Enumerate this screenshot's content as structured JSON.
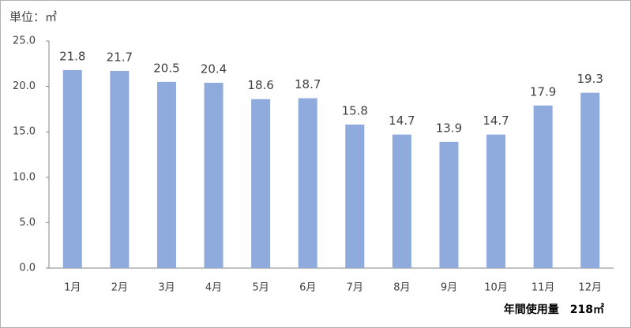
{
  "chart_data": {
    "type": "bar",
    "unit_label": "単位：㎡",
    "annotation": "年間使用量　218㎡",
    "categories": [
      "1月",
      "2月",
      "3月",
      "4月",
      "5月",
      "6月",
      "7月",
      "8月",
      "9月",
      "10月",
      "11月",
      "12月"
    ],
    "values": [
      21.8,
      21.7,
      20.5,
      20.4,
      18.6,
      18.7,
      15.8,
      14.7,
      13.9,
      14.7,
      17.9,
      19.3
    ],
    "color": "#8faadc",
    "ylim": [
      0,
      25
    ],
    "yticks": [
      {
        "value": 0,
        "label": "0.0"
      },
      {
        "value": 5,
        "label": "5.0"
      },
      {
        "value": 10,
        "label": "10.0"
      },
      {
        "value": 15,
        "label": "15.0"
      },
      {
        "value": 20,
        "label": "20.0"
      },
      {
        "value": 25,
        "label": "25.0"
      }
    ],
    "grid": false
  }
}
